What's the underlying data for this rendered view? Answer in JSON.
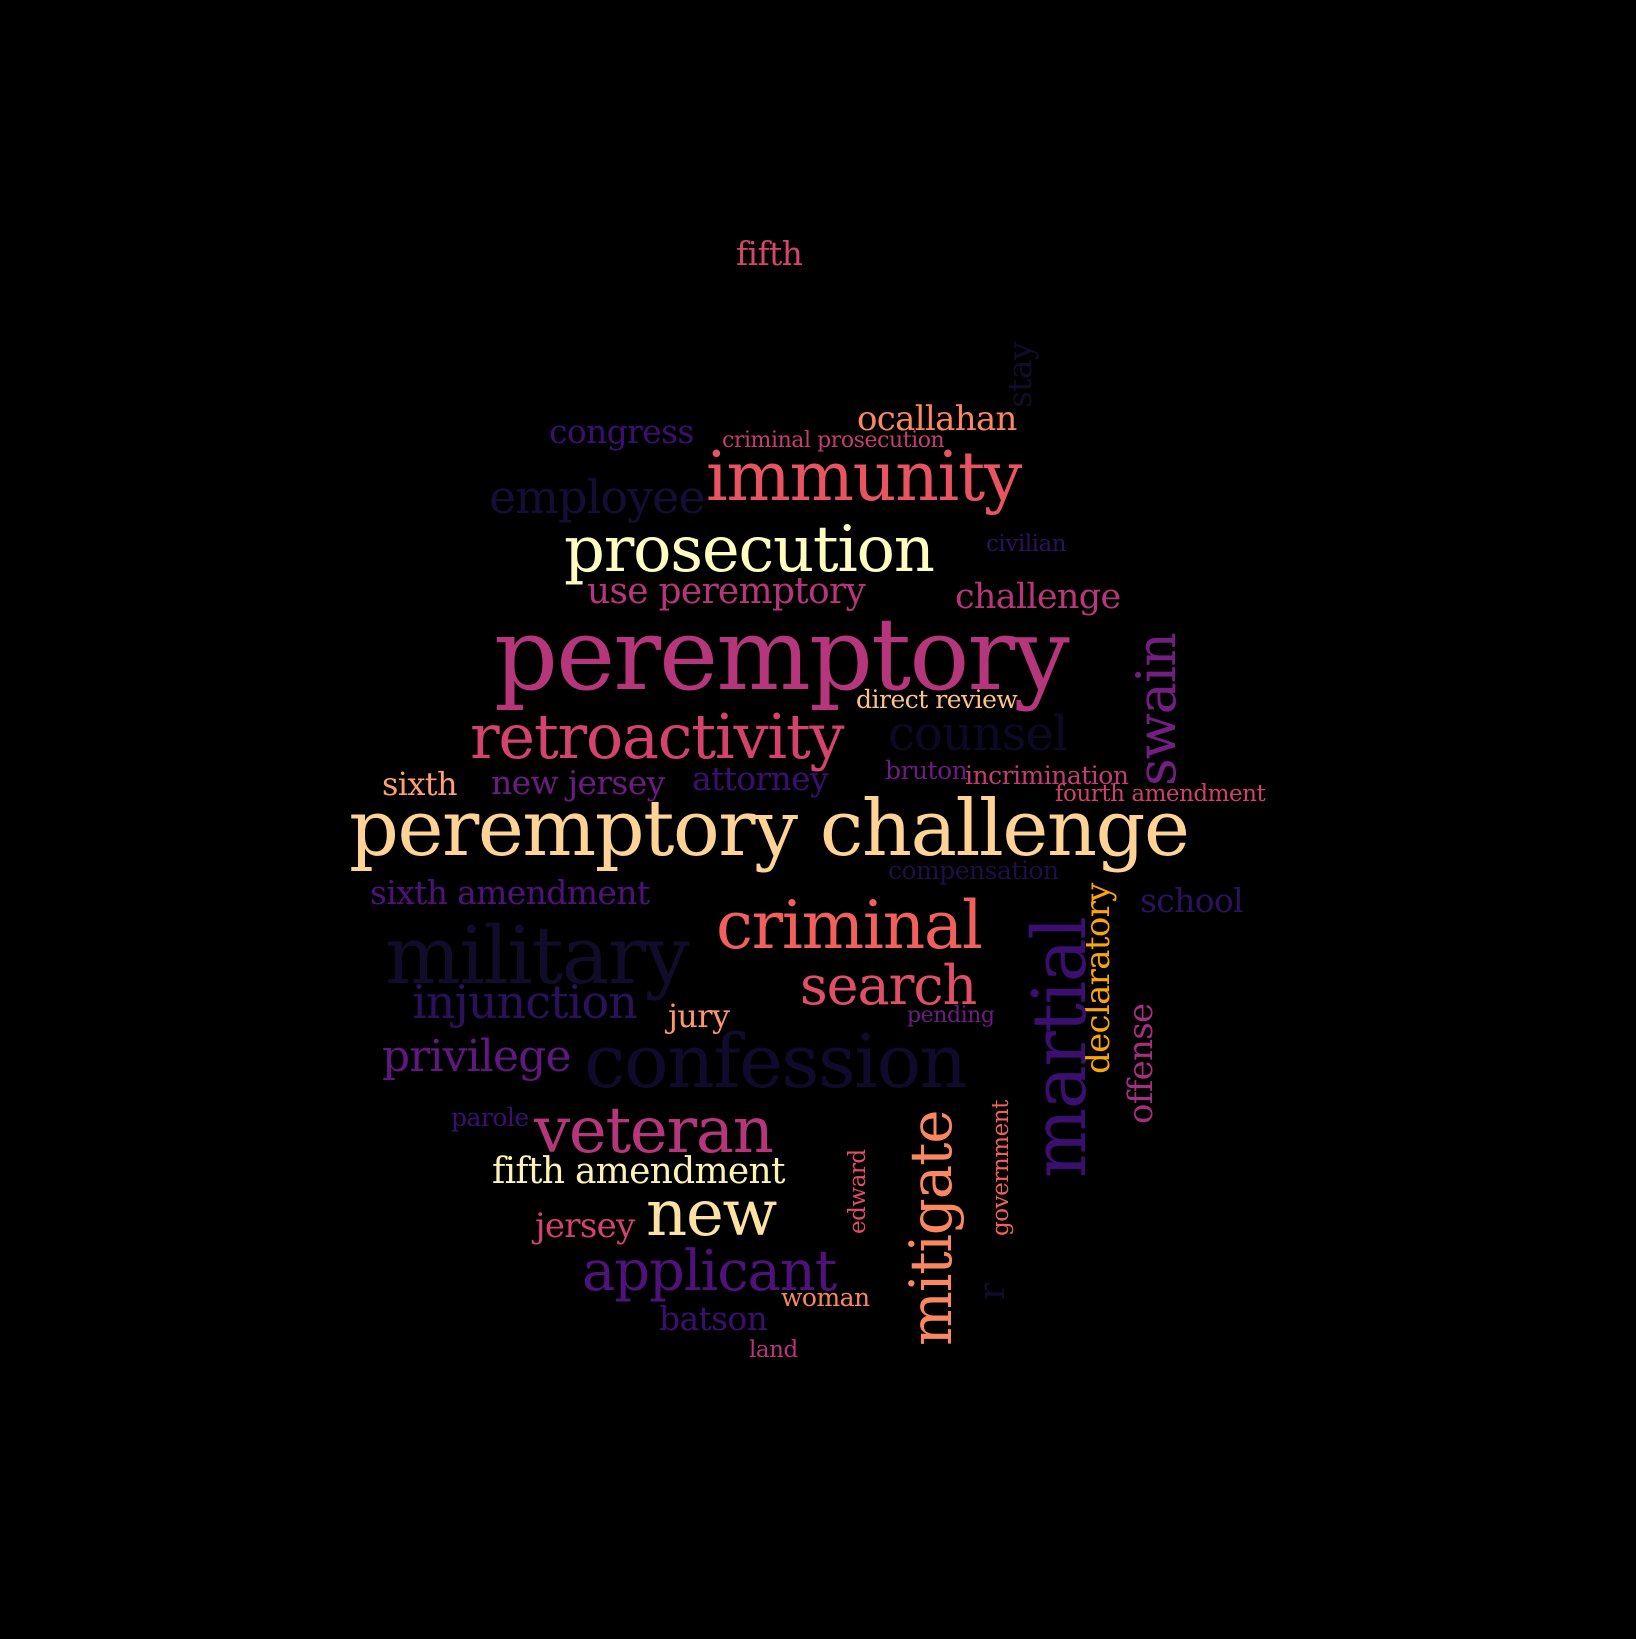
{
  "cloud": {
    "background": "#000000",
    "words": [
      {
        "id": "fifth",
        "text": "fifth",
        "color": "#d8456c"
      },
      {
        "id": "stay",
        "text": "stay",
        "color": "#110c2a"
      },
      {
        "id": "ocallahan",
        "text": "ocallahan",
        "color": "#fb8761"
      },
      {
        "id": "congress",
        "text": "congress",
        "color": "#3b0f70"
      },
      {
        "id": "criminal-prosecution",
        "text": "criminal prosecution",
        "color": "#c43c75"
      },
      {
        "id": "immunity",
        "text": "immunity",
        "color": "#e85462"
      },
      {
        "id": "employee",
        "text": "employee",
        "color": "#140e36"
      },
      {
        "id": "prosecution",
        "text": "prosecution",
        "color": "#fcfdbf"
      },
      {
        "id": "civilian",
        "text": "civilian",
        "color": "#2c115f"
      },
      {
        "id": "use-peremptory",
        "text": "use peremptory",
        "color": "#b5367a"
      },
      {
        "id": "challenge",
        "text": "challenge",
        "color": "#b73779"
      },
      {
        "id": "peremptory",
        "text": "peremptory",
        "color": "#b5367a"
      },
      {
        "id": "swain",
        "text": "swain",
        "color": "#721f81"
      },
      {
        "id": "direct-review",
        "text": "direct review",
        "color": "#fec287"
      },
      {
        "id": "counsel",
        "text": "counsel",
        "color": "#0b0924"
      },
      {
        "id": "retroactivity",
        "text": "retroactivity",
        "color": "#d3436e"
      },
      {
        "id": "sixth",
        "text": "sixth",
        "color": "#fea16e"
      },
      {
        "id": "new-jersey",
        "text": "new jersey",
        "color": "#6a1c81"
      },
      {
        "id": "attorney",
        "text": "attorney",
        "color": "#3b0f70"
      },
      {
        "id": "bruton",
        "text": "bruton",
        "color": "#6a1c81"
      },
      {
        "id": "incrimination",
        "text": "incrimination",
        "color": "#c43c75"
      },
      {
        "id": "fourth-amendment",
        "text": "fourth amendment",
        "color": "#cd4071"
      },
      {
        "id": "peremptory-challenge",
        "text": "peremptory challenge",
        "color": "#fed395"
      },
      {
        "id": "compensation",
        "text": "compensation",
        "color": "#1c1044"
      },
      {
        "id": "sixth-amendment",
        "text": "sixth amendment",
        "color": "#4f127b"
      },
      {
        "id": "school",
        "text": "school",
        "color": "#2c115f"
      },
      {
        "id": "military",
        "text": "military",
        "color": "#110c2a"
      },
      {
        "id": "criminal",
        "text": "criminal",
        "color": "#f1605d"
      },
      {
        "id": "declaratory",
        "text": "declaratory",
        "color": "#fca50a"
      },
      {
        "id": "martial",
        "text": "martial",
        "color": "#3b0f70"
      },
      {
        "id": "search",
        "text": "search",
        "color": "#e04e67"
      },
      {
        "id": "injunction",
        "text": "injunction",
        "color": "#2a115c"
      },
      {
        "id": "jury",
        "text": "jury",
        "color": "#fd9668"
      },
      {
        "id": "pending",
        "text": "pending",
        "color": "#6a1c81"
      },
      {
        "id": "offense",
        "text": "offense",
        "color": "#a3307e"
      },
      {
        "id": "privilege",
        "text": "privilege",
        "color": "#5f187f"
      },
      {
        "id": "confession",
        "text": "confession",
        "color": "#100b2d"
      },
      {
        "id": "parole",
        "text": "parole",
        "color": "#3b0f70"
      },
      {
        "id": "veteran",
        "text": "veteran",
        "color": "#b5367a"
      },
      {
        "id": "government",
        "text": "government",
        "color": "#f1605d"
      },
      {
        "id": "fifth-amendment",
        "text": "fifth amendment",
        "color": "#fcf2b4"
      },
      {
        "id": "edward",
        "text": "edward",
        "color": "#e24d66"
      },
      {
        "id": "mitigate",
        "text": "mitigate",
        "color": "#fb8761"
      },
      {
        "id": "jersey",
        "text": "jersey",
        "color": "#d3436e"
      },
      {
        "id": "new",
        "text": "new",
        "color": "#fde2a3"
      },
      {
        "id": "applicant",
        "text": "applicant",
        "color": "#4f127b"
      },
      {
        "id": "woman",
        "text": "woman",
        "color": "#fb8761"
      },
      {
        "id": "batson",
        "text": "batson",
        "color": "#3b0f70"
      },
      {
        "id": "land",
        "text": "land",
        "color": "#b5367a"
      },
      {
        "id": "r",
        "text": "r",
        "color": "#110c2a"
      }
    ]
  }
}
